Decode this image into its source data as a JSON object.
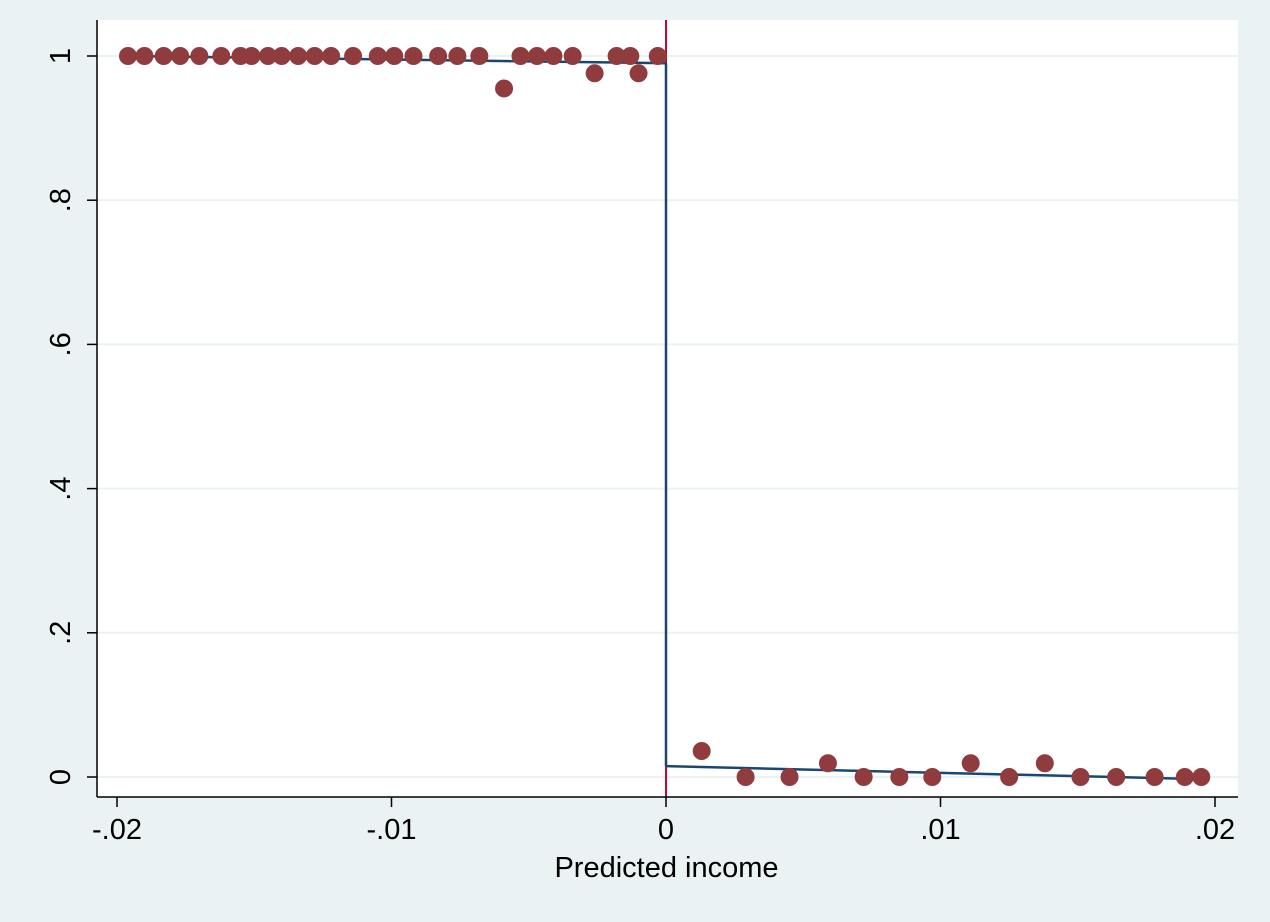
{
  "chart_data": {
    "type": "scatter",
    "title": "",
    "xlabel": "Predicted income",
    "ylabel": "",
    "xlim": [
      -0.02,
      0.02
    ],
    "ylim": [
      0,
      1
    ],
    "x_ticks": [
      {
        "value": -0.02,
        "label": "-.02"
      },
      {
        "value": -0.01,
        "label": "-.01"
      },
      {
        "value": 0,
        "label": "0"
      },
      {
        "value": 0.01,
        "label": ".01"
      },
      {
        "value": 0.02,
        "label": ".02"
      }
    ],
    "y_ticks": [
      {
        "value": 0,
        "label": "0"
      },
      {
        "value": 0.2,
        "label": ".2"
      },
      {
        "value": 0.4,
        "label": ".4"
      },
      {
        "value": 0.6,
        "label": ".6"
      },
      {
        "value": 0.8,
        "label": ".8"
      },
      {
        "value": 1,
        "label": "1"
      }
    ],
    "grid": "horizontal",
    "legend": "none",
    "cutoff": 0,
    "points": [
      {
        "x": -0.0196,
        "y": 1
      },
      {
        "x": -0.019,
        "y": 1
      },
      {
        "x": -0.0183,
        "y": 1
      },
      {
        "x": -0.0177,
        "y": 1
      },
      {
        "x": -0.017,
        "y": 1
      },
      {
        "x": -0.0162,
        "y": 1
      },
      {
        "x": -0.0155,
        "y": 1
      },
      {
        "x": -0.0151,
        "y": 1
      },
      {
        "x": -0.0145,
        "y": 1
      },
      {
        "x": -0.014,
        "y": 1
      },
      {
        "x": -0.0134,
        "y": 1
      },
      {
        "x": -0.0128,
        "y": 1
      },
      {
        "x": -0.0122,
        "y": 1
      },
      {
        "x": -0.0114,
        "y": 1
      },
      {
        "x": -0.0105,
        "y": 1
      },
      {
        "x": -0.0099,
        "y": 1
      },
      {
        "x": -0.0092,
        "y": 1
      },
      {
        "x": -0.0083,
        "y": 1
      },
      {
        "x": -0.0076,
        "y": 1
      },
      {
        "x": -0.0068,
        "y": 1
      },
      {
        "x": -0.0059,
        "y": 0.955
      },
      {
        "x": -0.0053,
        "y": 1
      },
      {
        "x": -0.0047,
        "y": 1
      },
      {
        "x": -0.0041,
        "y": 1
      },
      {
        "x": -0.0034,
        "y": 1
      },
      {
        "x": -0.0026,
        "y": 0.976
      },
      {
        "x": -0.0018,
        "y": 1
      },
      {
        "x": -0.0013,
        "y": 1
      },
      {
        "x": -0.001,
        "y": 0.976
      },
      {
        "x": -0.0003,
        "y": 1
      },
      {
        "x": 0.0013,
        "y": 0.036
      },
      {
        "x": 0.0029,
        "y": 0
      },
      {
        "x": 0.0045,
        "y": 0
      },
      {
        "x": 0.0059,
        "y": 0.019
      },
      {
        "x": 0.0072,
        "y": 0
      },
      {
        "x": 0.0085,
        "y": 0
      },
      {
        "x": 0.0097,
        "y": 0
      },
      {
        "x": 0.0111,
        "y": 0.019
      },
      {
        "x": 0.0125,
        "y": 0
      },
      {
        "x": 0.0138,
        "y": 0.019
      },
      {
        "x": 0.0151,
        "y": 0
      },
      {
        "x": 0.0164,
        "y": 0
      },
      {
        "x": 0.0178,
        "y": 0
      },
      {
        "x": 0.0189,
        "y": 0
      },
      {
        "x": 0.0195,
        "y": 0
      }
    ],
    "fit_left": [
      {
        "x": -0.0196,
        "y": 1
      },
      {
        "x": 0,
        "y": 0.99
      }
    ],
    "fit_right": [
      {
        "x": 0,
        "y": 0.015
      },
      {
        "x": 0.0195,
        "y": -0.003
      }
    ],
    "colors": {
      "background": "#eaf2f3",
      "plot_background": "#ffffff",
      "grid": "#eaf2f3",
      "axis": "#000000",
      "marker": "#903c3f",
      "fit_line": "#1a476f",
      "cutoff_line": "#c10534"
    }
  }
}
